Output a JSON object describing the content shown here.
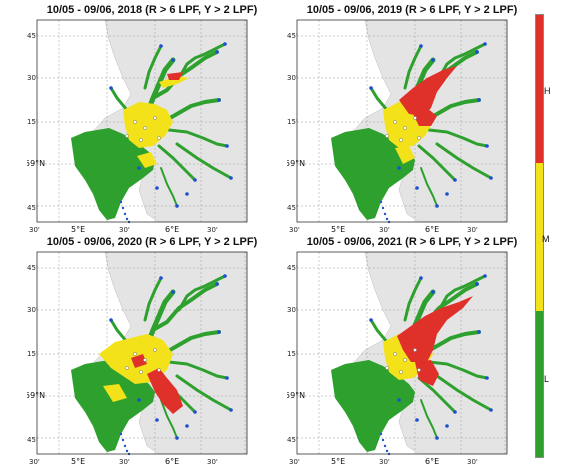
{
  "panels": [
    {
      "title": "10/05 - 09/06, 2018 (R > 6 LPF, Y > 2 LPF)",
      "pattern": "y2018"
    },
    {
      "title": "10/05 - 09/06, 2019 (R > 6 LPF, Y > 2 LPF)",
      "pattern": "y2019"
    },
    {
      "title": "10/05 - 09/06, 2020 (R > 6 LPF, Y > 2 LPF)",
      "pattern": "y2020"
    },
    {
      "title": "10/05 - 09/06, 2021 (R > 6 LPF, Y > 2 LPF)",
      "pattern": "y2021"
    }
  ],
  "axes": {
    "lat_ticks": [
      "45'",
      "30'",
      "15'",
      "59°N",
      "45'"
    ],
    "lon_ticks": [
      "30'",
      "5°E",
      "30'",
      "6°E",
      "30'"
    ]
  },
  "colorbar": {
    "labels": [
      "H",
      "M",
      "L"
    ],
    "colors": {
      "H": "#e0302a",
      "M": "#f3e21a",
      "L": "#2da02d"
    }
  },
  "colors": {
    "land": "#ffffff",
    "sea": "#e4e4e4",
    "station": "#1f4fd1",
    "grid": "#9a9a9a"
  }
}
